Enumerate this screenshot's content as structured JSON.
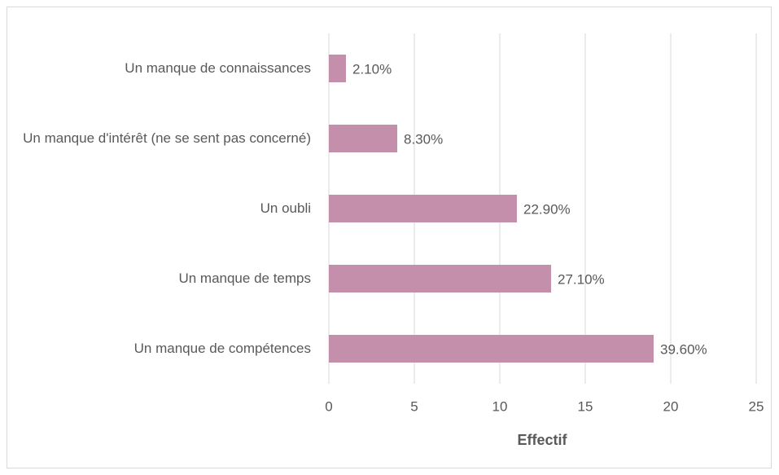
{
  "chart_data": {
    "type": "hbar",
    "categories": [
      "Un manque de connaissances",
      "Un manque d'intérêt (ne se sent pas concerné)",
      "Un oubli",
      "Un manque de temps",
      "Un manque de compétences"
    ],
    "values": [
      1,
      4,
      11,
      13,
      19
    ],
    "value_labels": [
      "2.10%",
      "8.30%",
      "22.90%",
      "27.10%",
      "39.60%"
    ],
    "color": "#c48fab",
    "xlabel": "Effectif",
    "xlim": [
      0,
      25
    ],
    "xticks": [
      0,
      5,
      10,
      15,
      20,
      25
    ],
    "grid": true
  }
}
